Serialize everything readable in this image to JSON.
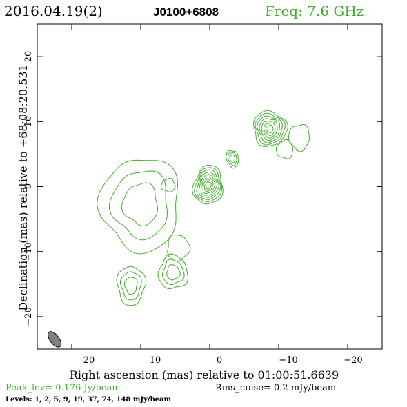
{
  "header": {
    "date": "2016.04.19(2)",
    "source": "J0100+6808",
    "freq": "Freq: 7.6 GHz"
  },
  "footer": {
    "peak": "Peak_lev=  0.176 Jy/beam",
    "rms": "Rms_noise=   0.2 mJy/beam",
    "levels": "Levels:   1,    2,    5,    9,   19,   37,   74,  148 mJy/beam"
  },
  "colors": {
    "contour": "#3fae2a",
    "beam": "#808080"
  },
  "chart_data": {
    "type": "contour",
    "xlabel": "Right ascension (mas) relative to 01:00:51.6639",
    "ylabel": "Declination (mas) relative to +68:08:20.531",
    "xlim": [
      25,
      -25
    ],
    "ylim": [
      -25,
      25
    ],
    "x_ticks": [
      20,
      10,
      0,
      -10,
      -20
    ],
    "y_ticks": [
      20,
      10,
      0,
      -10,
      -20
    ],
    "x_tick_labels": [
      "20",
      "10",
      "0",
      "−10",
      "−20"
    ],
    "y_tick_labels": [
      "20",
      "10",
      "0",
      "−10",
      "−20"
    ],
    "levels_mJy_per_beam": [
      1,
      2,
      5,
      9,
      19,
      37,
      74,
      148
    ],
    "components": [
      {
        "x": 0.2,
        "y": 0.2,
        "sx": 2.1,
        "sy": 3.0,
        "rot": 8,
        "levels": 8
      },
      {
        "x": -8.7,
        "y": 8.9,
        "sx": 2.4,
        "sy": 2.7,
        "rot": -10,
        "levels": 7
      },
      {
        "x": -3.3,
        "y": 4.3,
        "sx": 0.85,
        "sy": 1.35,
        "rot": -15,
        "levels": 3
      },
      {
        "x": -13.0,
        "y": 7.6,
        "sx": 1.5,
        "sy": 2.0,
        "rot": 0,
        "levels": 1
      },
      {
        "x": -10.9,
        "y": 5.7,
        "sx": 1.2,
        "sy": 1.4,
        "rot": 0,
        "levels": 1
      },
      {
        "x": 5.3,
        "y": -13.2,
        "sx": 2.1,
        "sy": 2.6,
        "rot": 0,
        "levels": 3
      },
      {
        "x": 4.6,
        "y": -9.4,
        "sx": 1.6,
        "sy": 2.0,
        "rot": 0,
        "levels": 1
      },
      {
        "x": 11.4,
        "y": -15.2,
        "sx": 2.0,
        "sy": 3.0,
        "rot": 0,
        "levels": 3
      },
      {
        "x": 10.0,
        "y": -2.7,
        "sx": 5.7,
        "sy": 7.2,
        "rot": 0,
        "levels": 3
      },
      {
        "x": 6.0,
        "y": 0.2,
        "sx": 1.0,
        "sy": 1.0,
        "rot": 0,
        "levels": 1
      }
    ],
    "beam": {
      "x": 22.5,
      "y": -23.5,
      "major": 2.8,
      "minor": 1.3,
      "pa_deg": 37
    }
  }
}
